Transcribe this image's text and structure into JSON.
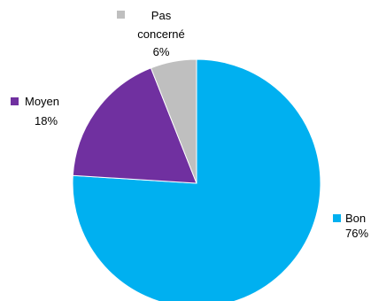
{
  "chart_data": {
    "type": "pie",
    "title": "",
    "start": "top",
    "direction": "clockwise",
    "slices": [
      {
        "label": "Bon",
        "value": 76,
        "display": "76%",
        "color": "#00B0F0",
        "label_lines": [
          "Bon"
        ]
      },
      {
        "label": "Moyen",
        "value": 18,
        "display": "18%",
        "color": "#7030A0",
        "label_lines": [
          "Moyen"
        ]
      },
      {
        "label": "Pas concerné",
        "value": 6,
        "display": "6%",
        "color": "#BFBFBF",
        "label_lines": [
          "Pas",
          "concerné"
        ]
      }
    ]
  }
}
